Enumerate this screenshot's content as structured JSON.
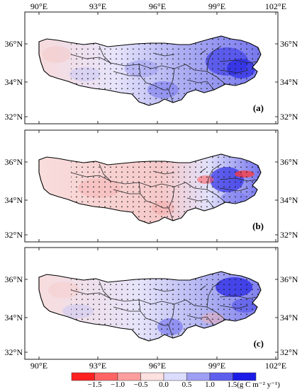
{
  "figure": {
    "top_ticks": [
      "90°E",
      "93°E",
      "96°E",
      "99°E",
      "102°E"
    ],
    "bottom_ticks": [
      "90°E",
      "93°E",
      "96°E",
      "99°E",
      "102°E"
    ],
    "lat_ticks": [
      "36°N",
      "34°N",
      "32°N"
    ],
    "panels": [
      {
        "label": "(a)",
        "color_scheme": "mostly-blue"
      },
      {
        "label": "(b)",
        "color_scheme": "pink-west-blue-east"
      },
      {
        "label": "(c)",
        "color_scheme": "mixed-blue"
      }
    ],
    "colorbar": {
      "tick_labels": [
        "−1.5",
        "−1.0",
        "−0.5",
        "0.0",
        "0.5",
        "1.0"
      ],
      "last_label": "1.5(g C m⁻² y⁻¹)",
      "colors": [
        "#ff2020",
        "#ff6464",
        "#ff9e9e",
        "#fde0e0",
        "#dcdcff",
        "#9e9ef5",
        "#5e5eee",
        "#1c1ce8"
      ]
    }
  }
}
